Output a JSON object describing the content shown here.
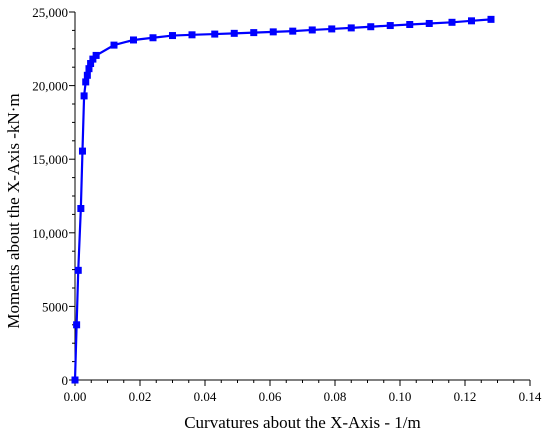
{
  "chart_data": {
    "type": "line",
    "title": "",
    "xlabel": "Curvatures about the X-Axis - 1/m",
    "ylabel": "Moments about the X-Axis -kN·m",
    "xlim": [
      0,
      0.14
    ],
    "ylim": [
      0,
      25000
    ],
    "x_ticks": [
      "0.00",
      "0.02",
      "0.04",
      "0.06",
      "0.08",
      "0.10",
      "0.12",
      "0.14"
    ],
    "y_ticks": [
      "0",
      "5000",
      "10,000",
      "15,000",
      "20,000",
      "25,000"
    ],
    "grid": false,
    "legend": "none",
    "series": [
      {
        "color": "#0000ff",
        "marker": "square",
        "x": [
          0.0,
          0.0005,
          0.001,
          0.0018,
          0.0023,
          0.0028,
          0.0033,
          0.0038,
          0.0043,
          0.0048,
          0.0055,
          0.0065,
          0.012,
          0.018,
          0.024,
          0.03,
          0.036,
          0.043,
          0.049,
          0.055,
          0.061,
          0.067,
          0.073,
          0.079,
          0.085,
          0.091,
          0.097,
          0.103,
          0.109,
          0.116,
          0.122,
          0.128
        ],
        "y": [
          0,
          3750,
          7450,
          11650,
          15550,
          19300,
          20250,
          20700,
          21150,
          21500,
          21800,
          22050,
          22750,
          23100,
          23250,
          23400,
          23450,
          23500,
          23550,
          23600,
          23650,
          23700,
          23780,
          23850,
          23920,
          24000,
          24080,
          24150,
          24220,
          24300,
          24400,
          24500
        ]
      }
    ]
  }
}
